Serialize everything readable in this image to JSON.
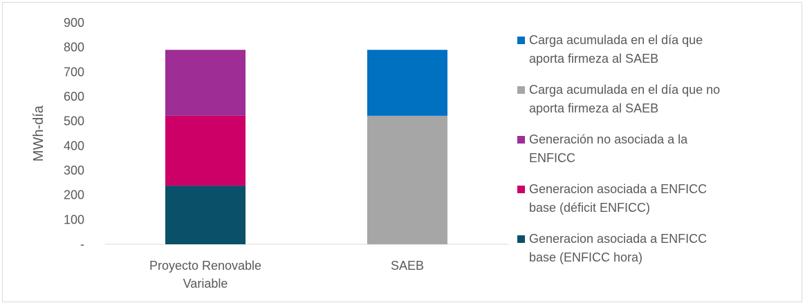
{
  "chart_data": {
    "type": "bar",
    "stacked": true,
    "ylabel": "MWh-día",
    "ylim": [
      0,
      900
    ],
    "yticks": [
      0,
      100,
      200,
      300,
      400,
      500,
      600,
      700,
      800,
      900
    ],
    "ytick_labels": [
      "-",
      "100",
      "200",
      "300",
      "400",
      "500",
      "600",
      "700",
      "800",
      "900"
    ],
    "grid": false,
    "legend_position": "right",
    "categories": [
      "Proyecto Renovable Variable",
      "SAEB"
    ],
    "category_lines": [
      [
        "Proyecto Renovable",
        "Variable"
      ],
      [
        "SAEB"
      ]
    ],
    "series": [
      {
        "name": "Generacion asociada a ENFICC base (ENFICC hora)",
        "lines": [
          "Generacion asociada a ENFICC",
          "base (ENFICC hora)"
        ],
        "color": "#0a5068",
        "values": [
          238,
          0
        ]
      },
      {
        "name": "Generacion asociada a ENFICC base (déficit ENFICC)",
        "lines": [
          "Generacion asociada a ENFICC",
          "base (déficit ENFICC)"
        ],
        "color": "#cc0066",
        "values": [
          284,
          0
        ]
      },
      {
        "name": "Generación no asociada a la ENFICC",
        "lines": [
          "Generación no asociada a la",
          "ENFICC"
        ],
        "color": "#9e2d96",
        "values": [
          268,
          0
        ]
      },
      {
        "name": "Carga acumulada en el día que no aporta firmeza al SAEB",
        "lines": [
          "Carga acumulada en el día que no",
          "aporta firmeza al SAEB"
        ],
        "color": "#a6a6a6",
        "values": [
          0,
          522
        ]
      },
      {
        "name": "Carga acumulada en el día que aporta firmeza al SAEB",
        "lines": [
          "Carga acumulada en el día que",
          "aporta firmeza al SAEB"
        ],
        "color": "#0070c0",
        "values": [
          0,
          268
        ]
      }
    ]
  }
}
